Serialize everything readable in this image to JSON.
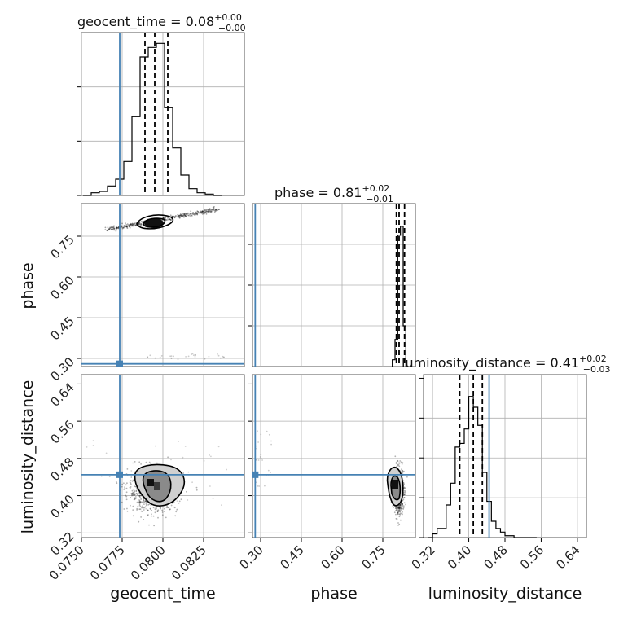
{
  "chart_data": {
    "type": "corner",
    "parameters": [
      "geocent_time",
      "phase",
      "luminosity_distance"
    ],
    "truth_color": "#4682b4",
    "truths": {
      "geocent_time": 0.07735,
      "phase": 0.28,
      "luminosity_distance": 0.445
    },
    "panels": {
      "geocent_time": {
        "title": "geocent_time = 0.08",
        "title_sup": "+0.00",
        "title_sub": "−0.00",
        "xlim": [
          0.075,
          0.085
        ],
        "xticks": [
          0.075,
          0.0775,
          0.08,
          0.0825
        ],
        "xtick_labels": [
          "0.0750",
          "0.0775",
          "0.0800",
          "0.0825"
        ],
        "quantiles": [
          0.0789,
          0.0795,
          0.0803
        ],
        "hist_edges": [
          0.0751,
          0.0756,
          0.0761,
          0.0766,
          0.0771,
          0.0776,
          0.0781,
          0.0786,
          0.0791,
          0.0796,
          0.0801,
          0.0806,
          0.0811,
          0.0816,
          0.0821,
          0.0826,
          0.0831,
          0.0836
        ],
        "hist_counts": [
          0,
          2,
          3,
          7,
          12,
          25,
          58,
          102,
          109,
          112,
          65,
          35,
          15,
          5,
          2,
          1,
          0
        ],
        "ylim": [
          0,
          120
        ]
      },
      "phase": {
        "title": "phase = 0.81",
        "title_sup": "+0.02",
        "title_sub": "−0.01",
        "xlim": [
          0.27,
          0.87
        ],
        "ticks": [
          0.3,
          0.45,
          0.6,
          0.75
        ],
        "tick_labels": [
          "0.30",
          "0.45",
          "0.60",
          "0.75"
        ],
        "quantiles": [
          0.8,
          0.81,
          0.83
        ],
        "hist_edges": [
          0.785,
          0.795,
          0.805,
          0.815,
          0.825,
          0.835,
          0.845
        ],
        "hist_counts": [
          3,
          12,
          58,
          62,
          18,
          0
        ],
        "ylim": [
          0,
          72
        ]
      },
      "luminosity_distance": {
        "title": "luminosity_distance = 0.41",
        "title_sup": "+0.02",
        "title_sub": "−0.03",
        "xlim": [
          0.3,
          0.66
        ],
        "ticks": [
          0.32,
          0.4,
          0.48,
          0.56,
          0.64
        ],
        "tick_labels": [
          "0.32",
          "0.40",
          "0.48",
          "0.56",
          "0.64"
        ],
        "quantiles": [
          0.38,
          0.41,
          0.43
        ],
        "hist_edges": [
          0.31,
          0.32,
          0.33,
          0.34,
          0.35,
          0.36,
          0.37,
          0.38,
          0.39,
          0.4,
          0.41,
          0.42,
          0.43,
          0.44,
          0.45,
          0.46,
          0.47,
          0.48,
          0.49,
          0.5,
          0.51,
          0.52,
          0.53,
          0.54,
          0.55
        ],
        "hist_counts": [
          0,
          2,
          5,
          5,
          18,
          30,
          50,
          52,
          60,
          78,
          72,
          62,
          36,
          20,
          9,
          5,
          3,
          1,
          1,
          0,
          0,
          0,
          0,
          0
        ],
        "ylim": [
          0,
          90
        ]
      }
    },
    "axis_labels": {
      "geocent_time": "geocent_time",
      "phase": "phase",
      "luminosity_distance": "luminosity_distance"
    },
    "joint_modes": {
      "phase_vs_geocent_time": {
        "x": 0.0794,
        "y": 0.81,
        "secondary_y": 0.3
      },
      "luminosity_distance_vs_geocent_time": {
        "x": 0.0794,
        "y": 0.41
      },
      "luminosity_distance_vs_phase": {
        "x": 0.81,
        "y": 0.41
      }
    },
    "grid": true,
    "legend": "none"
  }
}
